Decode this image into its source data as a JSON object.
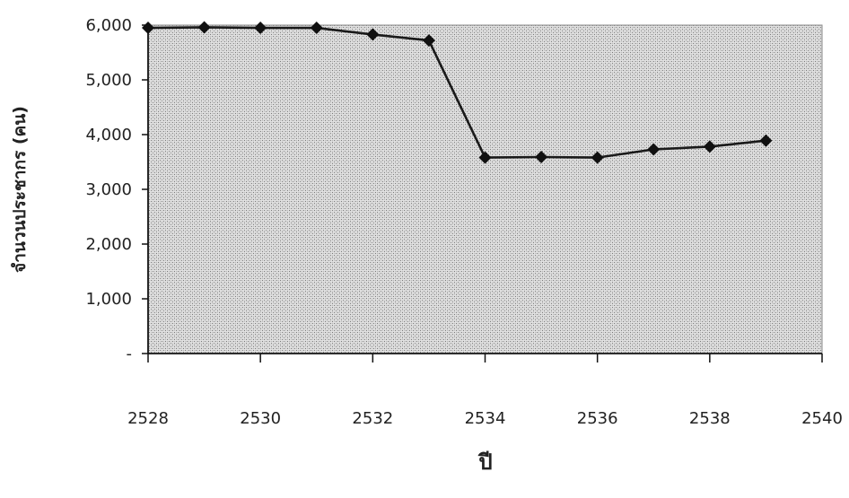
{
  "chart_data": {
    "type": "line",
    "title": "",
    "xlabel": "ปี",
    "ylabel": "จำนวนประชากร (คน)",
    "x": [
      2528,
      2529,
      2530,
      2531,
      2532,
      2533,
      2534,
      2535,
      2536,
      2537,
      2538,
      2539
    ],
    "series": [
      {
        "values": [
          5950,
          5960,
          5950,
          5950,
          5830,
          5720,
          3580,
          3590,
          3580,
          3730,
          3780,
          3890
        ]
      }
    ],
    "xlim": [
      2528,
      2540
    ],
    "ylim": [
      0,
      6000
    ],
    "x_ticks": [
      "2528",
      "2530",
      "2532",
      "2534",
      "2536",
      "2538",
      "2540"
    ],
    "y_ticks": [
      "-",
      "1,000",
      "2,000",
      "3,000",
      "4,000",
      "5,000",
      "6,000"
    ],
    "grid": false,
    "plot_background": "stippled-gray",
    "line_color": "#1a1a1a",
    "marker": "diamond"
  }
}
